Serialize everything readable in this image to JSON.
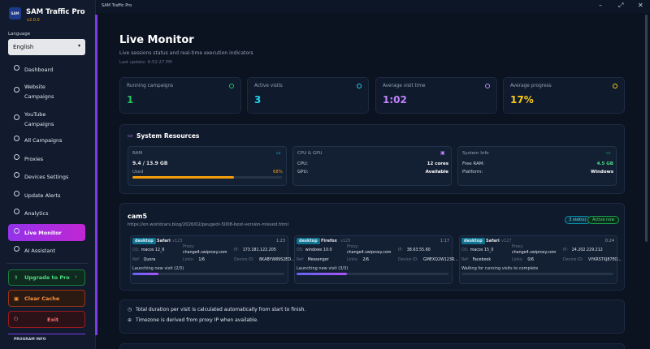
{
  "window": {
    "title": "SAM Traffic Pro"
  },
  "sidebar": {
    "logo": "SAM",
    "app_name": "SAM Traffic Pro",
    "version": "v2.0.0",
    "language_label": "Language",
    "language": "English",
    "nav": [
      {
        "label": "Dashboard",
        "active": false
      },
      {
        "label": "Website Campaigns",
        "active": false
      },
      {
        "label": "YouTube Campaigns",
        "active": false
      },
      {
        "label": "All Campaigns",
        "active": false
      },
      {
        "label": "Proxies",
        "active": false
      },
      {
        "label": "Devices Settings",
        "active": false
      },
      {
        "label": "Update Alerts",
        "active": false
      },
      {
        "label": "Analytics",
        "active": false
      },
      {
        "label": "Live Monitor",
        "active": true
      },
      {
        "label": "AI Assistant",
        "active": false
      }
    ],
    "upgrade": "Upgrade to Pro",
    "clear_cache": "Clear Cache",
    "exit": "Exit",
    "program_info": "PROGRAM INFO"
  },
  "header": {
    "title": "Live Monitor",
    "subtitle": "Live sessions status and real-time execution indicators",
    "last_update": "Last update: 6:52:27 PM"
  },
  "stats": [
    {
      "label": "Running campaigns",
      "value": "1",
      "color": "#22c55e"
    },
    {
      "label": "Active visits",
      "value": "3",
      "color": "#22d3ee"
    },
    {
      "label": "Average visit time",
      "value": "1:02",
      "color": "#c084fc"
    },
    {
      "label": "Average progress",
      "value": "17%",
      "color": "#facc15"
    }
  ],
  "system": {
    "title": "System Resources",
    "ram": {
      "title": "RAM",
      "value": "9.4 / 13.9 GB",
      "used_label": "Used",
      "used_pct": {
        "value": 68,
        "label": "68%"
      }
    },
    "cpu": {
      "title": "CPU & GPU",
      "rows": [
        [
          "CPU:",
          "12 cores"
        ],
        [
          "GPU:",
          "Available"
        ]
      ]
    },
    "info": {
      "title": "System Info",
      "rows": [
        [
          "Free RAM:",
          "4.5 GB"
        ],
        [
          "Platform:",
          "Windows"
        ]
      ]
    }
  },
  "campaign": {
    "name": "cam5",
    "url": "https://en.worldcars.blog/2026/02/peugeot-5008-best-version-missed.html",
    "visits_badge": "3 visit(s)",
    "status_badge": "Active now",
    "visits": [
      {
        "device": "desktop",
        "browser": "Safari",
        "version": "v123",
        "time": "1:23",
        "os": [
          "OS:",
          "macos 12_6"
        ],
        "proxy": [
          "Proxy:",
          "change4.swiproxy.com"
        ],
        "ip": [
          "IP:",
          "173.181.122.205"
        ],
        "ref": [
          "Ref:",
          "Quora"
        ],
        "links": [
          "Links:",
          "1/6"
        ],
        "device_id": [
          "Device ID:",
          "8KABYW89S2ED..."
        ],
        "status": "Launching new visit (2/3)",
        "progress": 17
      },
      {
        "device": "desktop",
        "browser": "Firefox",
        "version": "v125",
        "time": "1:17",
        "os": [
          "OS:",
          "windows 10.0"
        ],
        "proxy": [
          "Proxy:",
          "change4.swiproxy.com"
        ],
        "ip": [
          "IP:",
          "38.63.55.60"
        ],
        "ref": [
          "Ref:",
          "Messenger"
        ],
        "links": [
          "Links:",
          "2/6"
        ],
        "device_id": [
          "Device ID:",
          "GMEXQ2W123R..."
        ],
        "status": "Launching new visit (3/3)",
        "progress": 33
      },
      {
        "device": "desktop",
        "browser": "Safari",
        "version": "v127",
        "time": "0:24",
        "os": [
          "OS:",
          "macos 15_0"
        ],
        "proxy": [
          "Proxy:",
          "change4.swiproxy.com"
        ],
        "ip": [
          "IP:",
          "24.202.229.212"
        ],
        "ref": [
          "Ref:",
          "Facebook"
        ],
        "links": [
          "Links:",
          "0/6"
        ],
        "device_id": [
          "Device ID:",
          "VYKRSTXJ87EO..."
        ],
        "status": "Waiting for running visits to complete",
        "progress": 0
      }
    ]
  },
  "notes": [
    "Total duration per visit is calculated automatically from start to finish.",
    "Timezone is derived from proxy IP when available."
  ]
}
